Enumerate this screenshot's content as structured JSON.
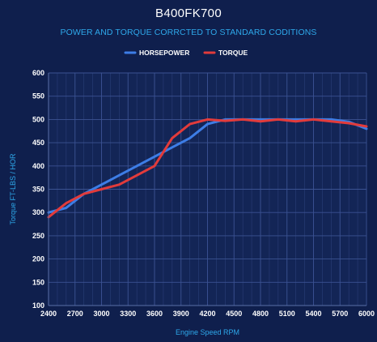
{
  "title": "B400FK700",
  "subtitle": "POWER AND TORQUE CORRCTED TO STANDARD CODITIONS",
  "chart_data": {
    "type": "line",
    "xlabel": "Engine Speed RPM",
    "ylabel": "Torque FT-LBS / HOR",
    "xlim": [
      2400,
      6000
    ],
    "ylim": [
      100,
      600
    ],
    "x_ticks": [
      "2400",
      "2700",
      "3000",
      "3300",
      "3600",
      "3900",
      "4200",
      "4500",
      "4800",
      "5100",
      "5400",
      "5700",
      "6000"
    ],
    "y_ticks": [
      "100",
      "150",
      "200",
      "250",
      "300",
      "350",
      "400",
      "450",
      "500",
      "550",
      "600"
    ],
    "grid": true,
    "legend_position": "top-center",
    "series": [
      {
        "name": "HORSEPOWER",
        "color": "#3d7de6",
        "points": [
          [
            2400,
            300
          ],
          [
            2600,
            310
          ],
          [
            2800,
            340
          ],
          [
            3000,
            360
          ],
          [
            3200,
            380
          ],
          [
            3400,
            400
          ],
          [
            3600,
            420
          ],
          [
            3800,
            440
          ],
          [
            4000,
            460
          ],
          [
            4200,
            490
          ],
          [
            4400,
            500
          ],
          [
            4600,
            500
          ],
          [
            4800,
            500
          ],
          [
            5000,
            500
          ],
          [
            5200,
            500
          ],
          [
            5400,
            500
          ],
          [
            5600,
            500
          ],
          [
            5800,
            495
          ],
          [
            6000,
            480
          ]
        ]
      },
      {
        "name": "TORQUE",
        "color": "#e23b3b",
        "points": [
          [
            2400,
            290
          ],
          [
            2600,
            320
          ],
          [
            2800,
            340
          ],
          [
            3000,
            350
          ],
          [
            3200,
            360
          ],
          [
            3400,
            380
          ],
          [
            3600,
            400
          ],
          [
            3800,
            460
          ],
          [
            4000,
            490
          ],
          [
            4200,
            500
          ],
          [
            4400,
            497
          ],
          [
            4600,
            500
          ],
          [
            4800,
            496
          ],
          [
            5000,
            500
          ],
          [
            5200,
            496
          ],
          [
            5400,
            500
          ],
          [
            5600,
            496
          ],
          [
            5800,
            492
          ],
          [
            6000,
            485
          ]
        ]
      }
    ]
  }
}
